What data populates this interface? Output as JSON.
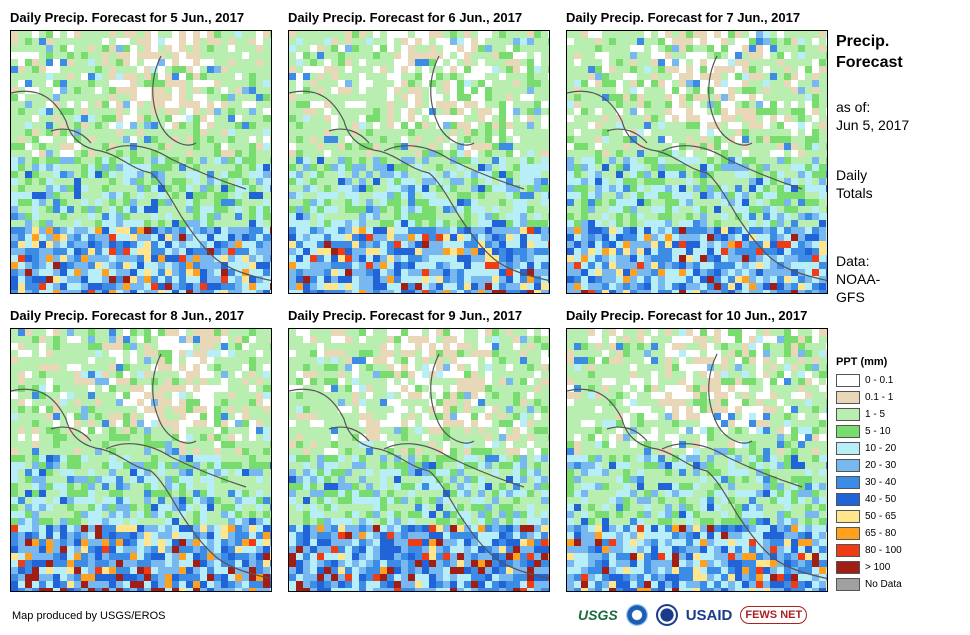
{
  "panels": [
    {
      "title": "Daily Precip. Forecast for 5 Jun., 2017",
      "seed": 11,
      "heavy": 0.25
    },
    {
      "title": "Daily Precip. Forecast for 6 Jun., 2017",
      "seed": 23,
      "heavy": 0.45
    },
    {
      "title": "Daily Precip. Forecast for 7 Jun., 2017",
      "seed": 37,
      "heavy": 0.6
    },
    {
      "title": "Daily Precip. Forecast for 8 Jun., 2017",
      "seed": 41,
      "heavy": 0.85
    },
    {
      "title": "Daily Precip. Forecast for 9 Jun., 2017",
      "seed": 53,
      "heavy": 0.8
    },
    {
      "title": "Daily Precip. Forecast for 10 Jun., 2017",
      "seed": 67,
      "heavy": 0.55
    }
  ],
  "side": {
    "title_line1": "Precip.",
    "title_line2": "Forecast",
    "asof_label": "as of:",
    "asof_date": "Jun 5, 2017",
    "daily_line1": "Daily",
    "daily_line2": "Totals",
    "data_label": "Data:",
    "data_source_line1": "NOAA-",
    "data_source_line2": "GFS"
  },
  "legend": {
    "title": "PPT (mm)",
    "items": [
      {
        "label": "0 - 0.1",
        "color": "#ffffff"
      },
      {
        "label": "0.1 - 1",
        "color": "#e8d8b8"
      },
      {
        "label": "1 - 5",
        "color": "#b8eeb0"
      },
      {
        "label": "5 - 10",
        "color": "#78dc6e"
      },
      {
        "label": "10 - 20",
        "color": "#b8eef8"
      },
      {
        "label": "20 - 30",
        "color": "#78b8f0"
      },
      {
        "label": "30 - 40",
        "color": "#3c8ce6"
      },
      {
        "label": "40 - 50",
        "color": "#2064d8"
      },
      {
        "label": "50 - 65",
        "color": "#ffe68c"
      },
      {
        "label": "65 - 80",
        "color": "#ffa01e"
      },
      {
        "label": "80 - 100",
        "color": "#f03c14"
      },
      {
        "label": "> 100",
        "color": "#a01e14"
      },
      {
        "label": "No Data",
        "color": "#a0a0a0"
      }
    ]
  },
  "credit": "Map produced by USGS/EROS",
  "logos": {
    "usgs": "USGS",
    "usaid": "USAID",
    "fews": "FEWS NET"
  }
}
